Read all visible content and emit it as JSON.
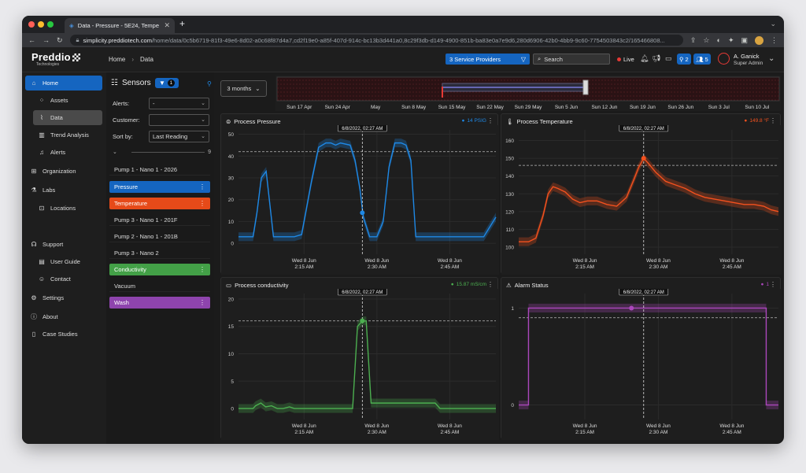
{
  "browser": {
    "tab_title": "Data - Pressure - 5E24, Tempe",
    "url_host": "simplicity.preddiotech.com",
    "url_path": "/home/data/0c5b6719-81f3-49e6-8d02-a0c68f87d4a7,cd2f19e0-a85f-407d-914c-bc13b3d441a0,8c29f3db-d149-4900-851b-ba83e0a7e9d6,280d6906-42b0-4bb9-9c60-7754503843c2/165466808..."
  },
  "header": {
    "logo": "Preddio",
    "logo_sub": "Technologies",
    "breadcrumb_home": "Home",
    "breadcrumb_current": "Data",
    "service_providers": "3 Service Providers",
    "search_placeholder": "Search",
    "live_label": "Live",
    "pill1_count": "2",
    "pill2_count": "5",
    "user_name": "A. Ganick",
    "user_role": "Super Admin"
  },
  "sidebar": {
    "items": [
      {
        "label": "Home",
        "icon": "home-icon"
      },
      {
        "label": "Assets",
        "icon": "assets-icon"
      },
      {
        "label": "Data",
        "icon": "chart-icon"
      },
      {
        "label": "Trend Analysis",
        "icon": "trend-icon"
      },
      {
        "label": "Alerts",
        "icon": "bell-icon"
      },
      {
        "label": "Organization",
        "icon": "org-icon"
      },
      {
        "label": "Labs",
        "icon": "flask-icon"
      },
      {
        "label": "Locations",
        "icon": "map-icon"
      },
      {
        "label": "Support",
        "icon": "support-icon"
      },
      {
        "label": "User Guide",
        "icon": "doc-icon"
      },
      {
        "label": "Contact",
        "icon": "contact-icon"
      },
      {
        "label": "Settings",
        "icon": "gear-icon"
      },
      {
        "label": "About",
        "icon": "info-icon"
      },
      {
        "label": "Case Studies",
        "icon": "file-icon"
      }
    ]
  },
  "sensors": {
    "title": "Sensors",
    "filter_count": "1",
    "alerts_label": "Alerts:",
    "alerts_value": "-",
    "customer_label": "Customer:",
    "customer_value": "",
    "sort_label": "Sort by:",
    "sort_value": "Last Reading",
    "slider_max": "9",
    "rows": [
      {
        "label": "Pump 1 - Nano 1 - 2026",
        "color": ""
      },
      {
        "label": "Pressure",
        "color": "#1565c0"
      },
      {
        "label": "Temperature",
        "color": "#e64a19"
      },
      {
        "label": "Pump 3 - Nano 1 - 201F",
        "color": ""
      },
      {
        "label": "Pump 2 - Nano 1 - 201B",
        "color": ""
      },
      {
        "label": "Pump 3 - Nano 2",
        "color": ""
      },
      {
        "label": "Conductivity",
        "color": "#43a047"
      },
      {
        "label": "Vacuum",
        "color": ""
      },
      {
        "label": "Wash",
        "color": "#8e44ad"
      }
    ]
  },
  "timeline": {
    "range_button": "3 months",
    "labels": [
      "Sun 17 Apr",
      "Sun 24 Apr",
      "May",
      "Sun 8 May",
      "Sun 15 May",
      "Sun 22 May",
      "Sun 29 May",
      "Sun 5 Jun",
      "Sun 12 Jun",
      "Sun 19 Jun",
      "Sun 26 Jun",
      "Sun 3 Jul",
      "Sun 10 Jul"
    ]
  },
  "charts": [
    {
      "title": "Process Pressure",
      "legend": "14 PSIG",
      "color": "#1e88e5",
      "cursor_label": "6/8/2022, 02:27 AM",
      "chart_data": {
        "type": "line",
        "title": "Process Pressure",
        "ylim": [
          -5,
          52
        ],
        "yticks": [
          0,
          10,
          20,
          30,
          40,
          50
        ],
        "xlim": [
          0,
          53
        ],
        "x_tick_values": [
          13.5,
          28.5,
          43.5
        ],
        "x_tick_labels": [
          [
            "Wed 8 Jun",
            "2:15 AM"
          ],
          [
            "Wed 8 Jun",
            "2:30 AM"
          ],
          [
            "Wed 8 Jun",
            "2:45 AM"
          ]
        ],
        "threshold": 42,
        "cursor_x": 25.5,
        "x": [
          0,
          3,
          3.8,
          4.7,
          5.7,
          7.2,
          10.5,
          11.5,
          13,
          15,
          16.5,
          18,
          19,
          20,
          21,
          23,
          24,
          25,
          25.7,
          27,
          28.5,
          29.8,
          31,
          32.2,
          33.5,
          34.5,
          35.5,
          36.5,
          38,
          41,
          45,
          49,
          50.5,
          53
        ],
        "y": [
          3,
          3,
          14,
          30,
          33,
          3,
          3,
          3,
          4,
          28,
          44,
          46,
          46,
          45,
          46,
          45,
          38,
          25,
          12,
          3,
          3,
          10,
          35,
          46,
          46,
          45,
          38,
          3,
          3,
          3,
          3,
          3,
          3,
          12
        ],
        "marker": [
          25.5,
          14
        ]
      }
    },
    {
      "title": "Process Temperature",
      "legend": "149.8 °F",
      "color": "#f4511e",
      "cursor_label": "6/8/2022, 02:27 AM",
      "chart_data": {
        "type": "line",
        "title": "Process Temperature",
        "ylim": [
          96,
          166
        ],
        "yticks": [
          100,
          110,
          120,
          130,
          140,
          150,
          160
        ],
        "xlim": [
          0,
          53
        ],
        "x_tick_values": [
          13.5,
          28.5,
          43.5
        ],
        "x_tick_labels": [
          [
            "Wed 8 Jun",
            "2:15 AM"
          ],
          [
            "Wed 8 Jun",
            "2:30 AM"
          ],
          [
            "Wed 8 Jun",
            "2:45 AM"
          ]
        ],
        "threshold": 146,
        "cursor_x": 25.5,
        "x": [
          0,
          2,
          3.5,
          5,
          6,
          7,
          8,
          9.5,
          11,
          12.5,
          14,
          16,
          18,
          20,
          22,
          23.5,
          24.5,
          25.5,
          26.5,
          28,
          30,
          32,
          34,
          36,
          38,
          40,
          42,
          44,
          46,
          48,
          50,
          51.5,
          53
        ],
        "y": [
          103,
          103,
          105,
          118,
          130,
          134,
          133,
          131,
          127,
          125,
          126,
          126,
          124,
          123,
          128,
          138,
          145,
          150,
          147,
          142,
          137,
          135,
          133,
          130,
          128,
          127,
          126,
          125,
          124,
          124,
          123,
          121,
          120
        ],
        "marker": [
          25.5,
          150
        ]
      }
    },
    {
      "title": "Process conductivity",
      "legend": "15.87 mS/cm",
      "color": "#4caf50",
      "cursor_label": "6/8/2022, 02:27 AM",
      "chart_data": {
        "type": "line",
        "title": "Process conductivity",
        "ylim": [
          -2,
          21
        ],
        "yticks": [
          0,
          5,
          10,
          15,
          20
        ],
        "xlim": [
          0,
          53
        ],
        "x_tick_values": [
          13.5,
          28.5,
          43.5
        ],
        "x_tick_labels": [
          [
            "Wed 8 Jun",
            "2:15 AM"
          ],
          [
            "Wed 8 Jun",
            "2:30 AM"
          ],
          [
            "Wed 8 Jun",
            "2:45 AM"
          ]
        ],
        "threshold": 16,
        "cursor_x": 25.5,
        "x": [
          0,
          3,
          3.5,
          4.6,
          5.6,
          6.8,
          8,
          9.2,
          10.5,
          11.5,
          13,
          17.5,
          19.5,
          22,
          23.5,
          24.5,
          25.5,
          26.3,
          27.3,
          30,
          33,
          36,
          38.5,
          39.5,
          40.5,
          41.5,
          43,
          46,
          53
        ],
        "y": [
          0,
          0,
          0.5,
          1,
          0.3,
          0.5,
          0,
          0,
          0.3,
          0,
          0,
          0,
          0,
          0,
          0,
          15,
          16,
          16,
          1,
          1,
          1,
          1,
          1,
          1,
          1,
          0,
          0,
          0,
          0
        ],
        "marker": [
          25.5,
          16
        ]
      }
    },
    {
      "title": "Alarm Status",
      "legend": "1",
      "color": "#ab47bc",
      "cursor_label": "6/8/2022, 02:27 AM",
      "chart_data": {
        "type": "line",
        "title": "Alarm Status",
        "ylim": [
          -0.15,
          1.15
        ],
        "yticks": [
          0,
          1
        ],
        "xlim": [
          0,
          53
        ],
        "x_tick_values": [
          13.5,
          28.5,
          43.5
        ],
        "x_tick_labels": [
          [
            "Wed 8 Jun",
            "2:15 AM"
          ],
          [
            "Wed 8 Jun",
            "2:30 AM"
          ],
          [
            "Wed 8 Jun",
            "2:45 AM"
          ]
        ],
        "threshold": 0.9,
        "cursor_x": 25.5,
        "x": [
          0,
          2,
          2,
          50.5,
          50.5,
          53
        ],
        "y": [
          0,
          0,
          1,
          1,
          0,
          0
        ],
        "marker": [
          23,
          1
        ]
      }
    }
  ]
}
